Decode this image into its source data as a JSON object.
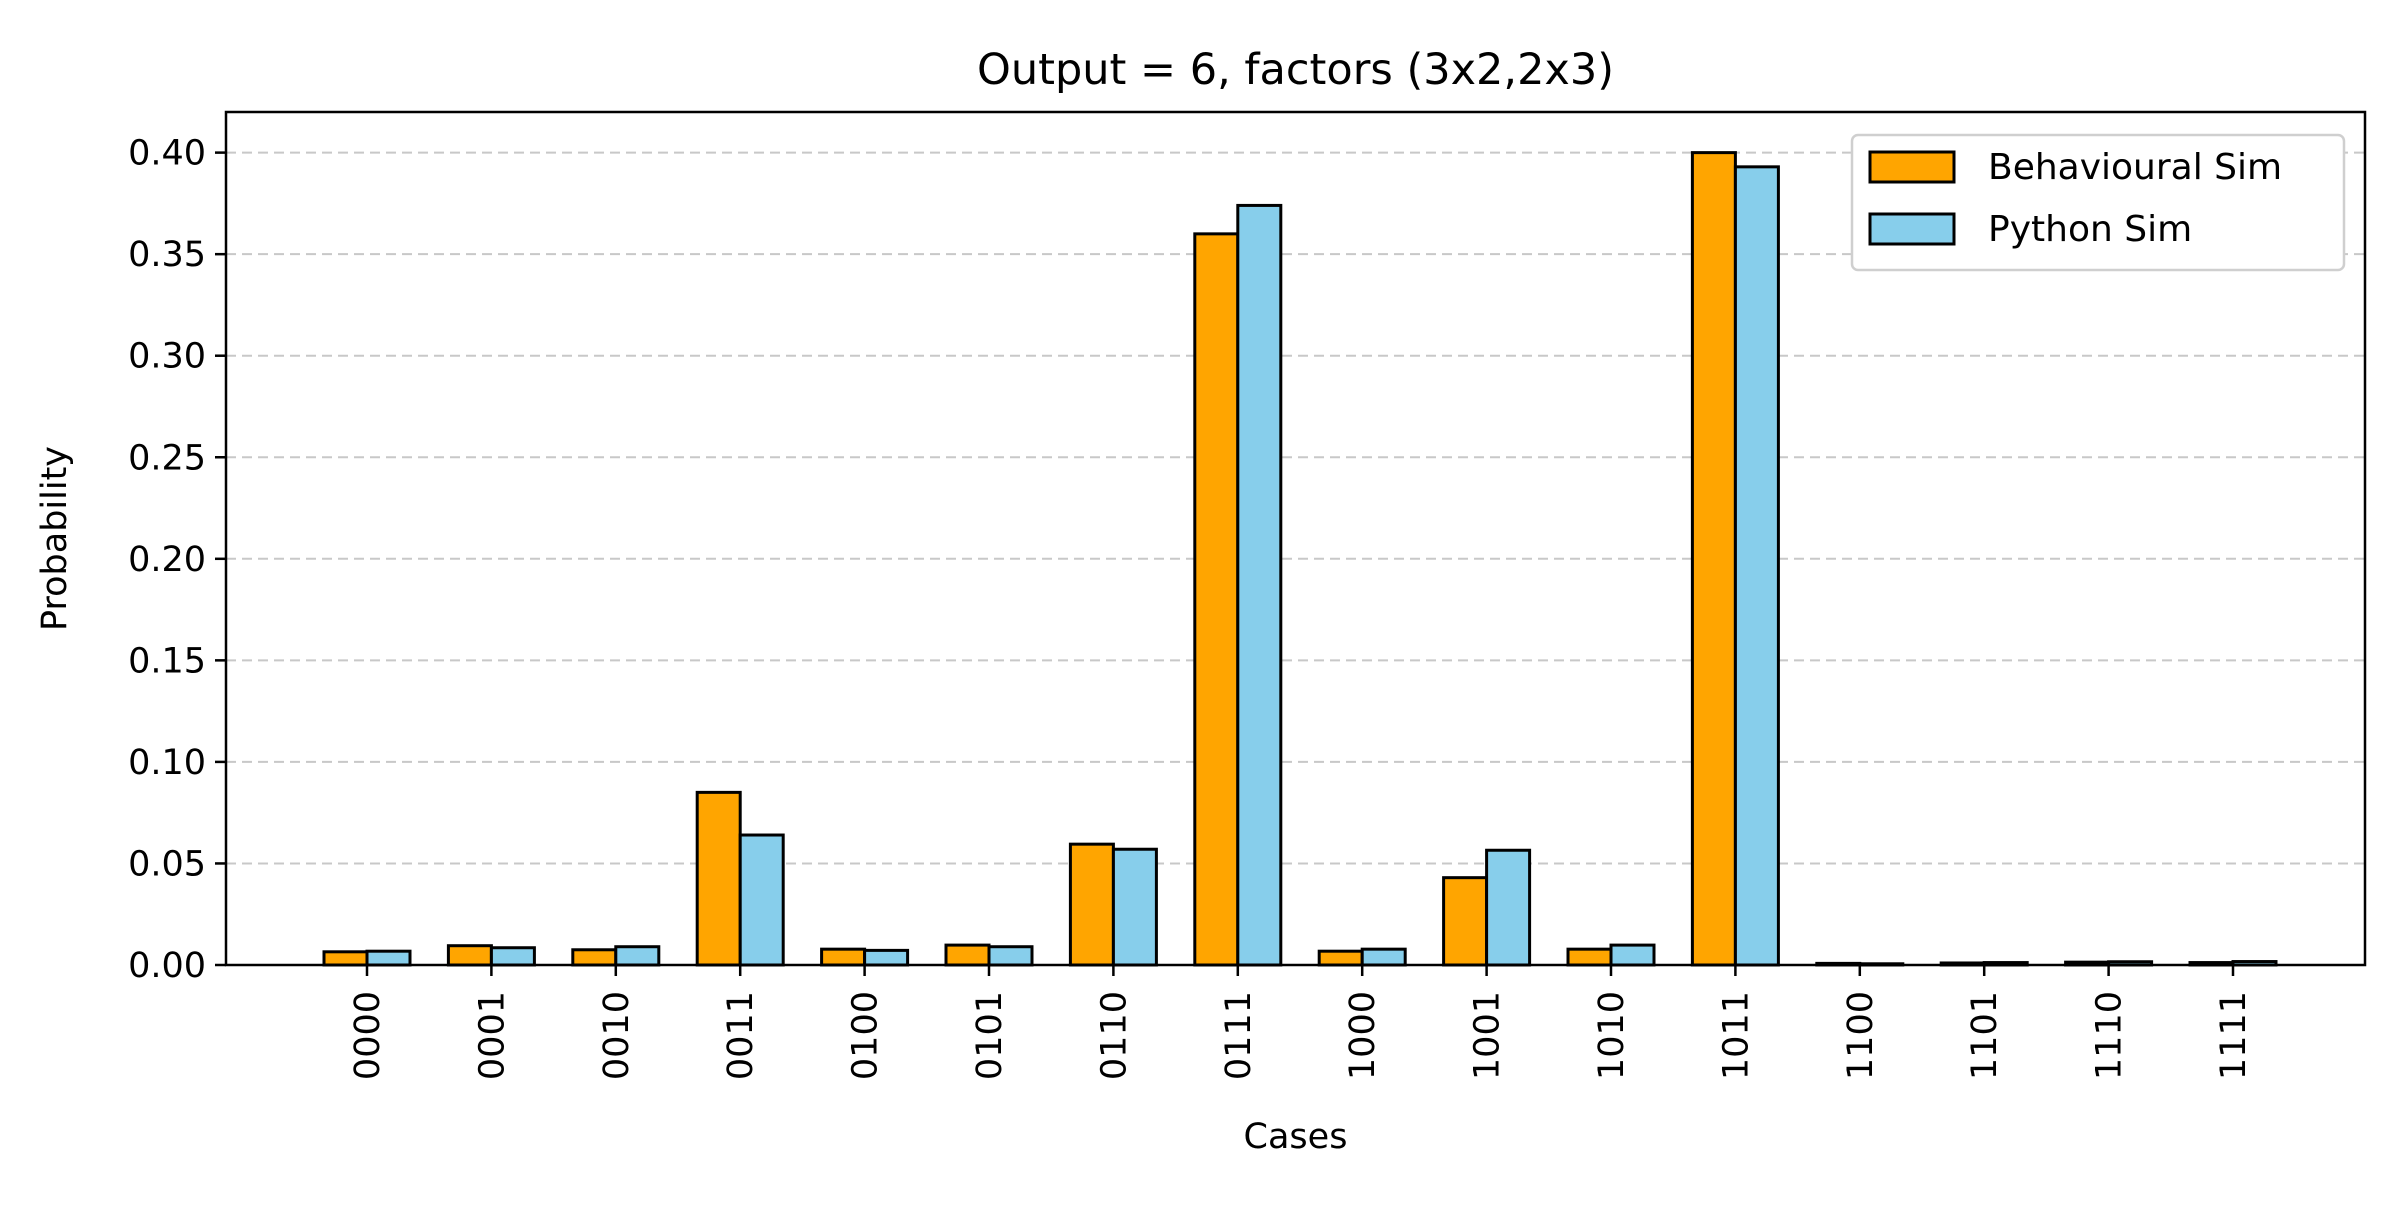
{
  "chart_data": {
    "type": "bar",
    "title": "Output = 6, factors (3x2,2x3)",
    "xlabel": "Cases",
    "ylabel": "Probability",
    "ylim": [
      0,
      0.42
    ],
    "yticks": [
      "0.00",
      "0.05",
      "0.10",
      "0.15",
      "0.20",
      "0.25",
      "0.30",
      "0.35",
      "0.40"
    ],
    "grid": "y, dashed",
    "legend_position": "top-right",
    "categories": [
      "0000",
      "0001",
      "0010",
      "0011",
      "0100",
      "0101",
      "0110",
      "0111",
      "1000",
      "1001",
      "1010",
      "1011",
      "1100",
      "1101",
      "1110",
      "1111"
    ],
    "series": [
      {
        "name": "Behavioural Sim",
        "color": "#ffa500",
        "values": [
          0.0065,
          0.0095,
          0.0075,
          0.085,
          0.0078,
          0.0098,
          0.0595,
          0.36,
          0.0068,
          0.043,
          0.0078,
          0.4,
          0.0008,
          0.001,
          0.0014,
          0.0012
        ]
      },
      {
        "name": "Python Sim",
        "color": "#87ceeb",
        "values": [
          0.0068,
          0.0085,
          0.009,
          0.064,
          0.0072,
          0.009,
          0.057,
          0.374,
          0.0078,
          0.0565,
          0.0098,
          0.393,
          0.0006,
          0.0012,
          0.0016,
          0.0017
        ]
      }
    ]
  }
}
